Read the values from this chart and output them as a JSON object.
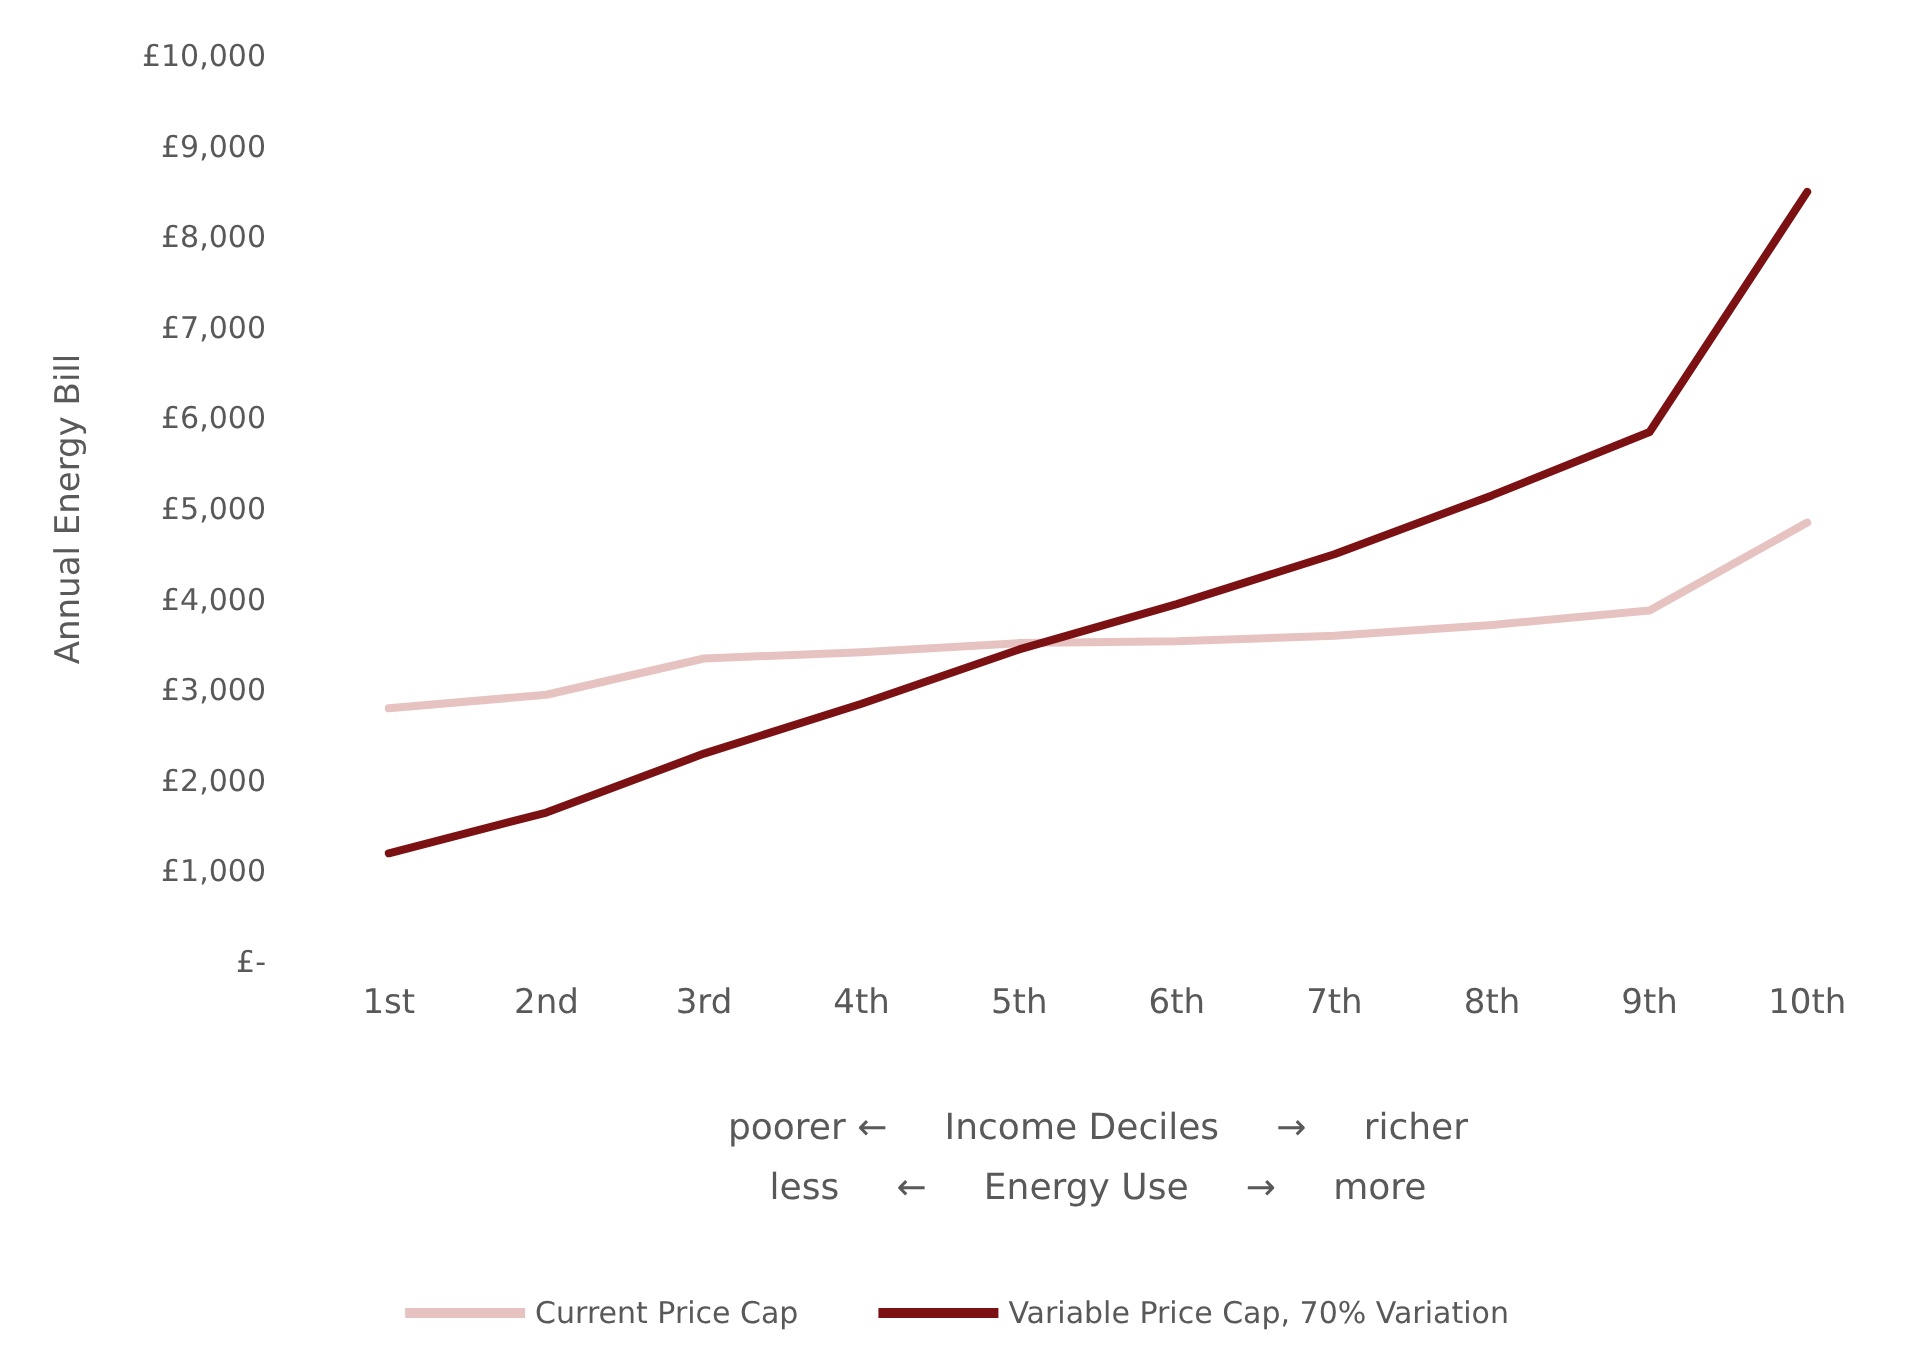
{
  "chart_data": {
    "type": "line",
    "ylabel": "Annual Energy Bill",
    "xlabel": "poorer ←     Income Deciles     →     richer\nless     ←     Energy Use     →     more",
    "categories": [
      "1st",
      "2nd",
      "3rd",
      "4th",
      "5th",
      "6th",
      "7th",
      "8th",
      "9th",
      "10th"
    ],
    "series": [
      {
        "name": "Current Price Cap",
        "color": "#e6c3c0",
        "values": [
          2800,
          2950,
          3350,
          3420,
          3520,
          3540,
          3600,
          3720,
          3880,
          4850
        ]
      },
      {
        "name": "Variable Price Cap, 70% Variation",
        "color": "#7b1113",
        "values": [
          1200,
          1650,
          2300,
          2850,
          3450,
          3950,
          4500,
          5150,
          5850,
          8500
        ]
      }
    ],
    "ylim": [
      0,
      10000
    ],
    "yticks": [
      {
        "value": 0,
        "label": "£-"
      },
      {
        "value": 1000,
        "label": "£1,000"
      },
      {
        "value": 2000,
        "label": "£2,000"
      },
      {
        "value": 3000,
        "label": "£3,000"
      },
      {
        "value": 4000,
        "label": "£4,000"
      },
      {
        "value": 5000,
        "label": "£5,000"
      },
      {
        "value": 6000,
        "label": "£6,000"
      },
      {
        "value": 7000,
        "label": "£7,000"
      },
      {
        "value": 8000,
        "label": "£8,000"
      },
      {
        "value": 9000,
        "label": "£9,000"
      },
      {
        "value": 10000,
        "label": "£10,000"
      }
    ],
    "grid": false,
    "legend": "bottom",
    "marker": "none",
    "line_style": "solid"
  }
}
